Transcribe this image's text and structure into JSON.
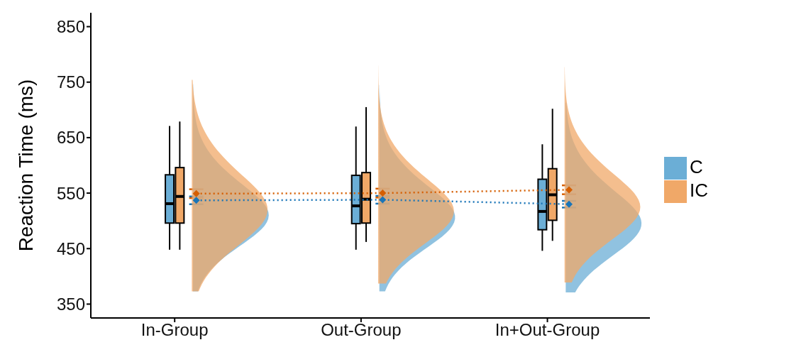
{
  "chart_data": {
    "type": "box",
    "ylabel": "Reaction Time (ms)",
    "categories": [
      "In-Group",
      "Out-Group",
      "In+Out-Group"
    ],
    "ylim": [
      325,
      875
    ],
    "yticks": [
      350,
      450,
      550,
      650,
      750,
      850
    ],
    "legend": "right",
    "series": [
      {
        "name": "C",
        "color": "#6baed6",
        "boxes": [
          {
            "low": 448,
            "q1": 496,
            "median": 531,
            "q3": 583,
            "high": 671
          },
          {
            "low": 448,
            "q1": 495,
            "median": 527,
            "q3": 582,
            "high": 670
          },
          {
            "low": 446,
            "q1": 484,
            "median": 517,
            "q3": 575,
            "high": 638
          }
        ]
      },
      {
        "name": "IC",
        "color": "#f0a868",
        "boxes": [
          {
            "low": 448,
            "q1": 496,
            "median": 544,
            "q3": 596,
            "high": 679
          },
          {
            "low": 462,
            "q1": 496,
            "median": 539,
            "q3": 587,
            "high": 705
          },
          {
            "low": 464,
            "q1": 501,
            "median": 547,
            "q3": 594,
            "high": 702
          }
        ]
      },
      {
        "type": "line",
        "color": "#1a75b8",
        "values": [
          537,
          538,
          530
        ],
        "errors": [
          7,
          7,
          6
        ],
        "marker": "diamond",
        "line_style": "dotted"
      },
      {
        "type": "line",
        "color": "#d55e00",
        "values": [
          549,
          550,
          556
        ],
        "errors": [
          8,
          8,
          8
        ],
        "marker": "diamond",
        "line_style": "dotted"
      }
    ]
  }
}
